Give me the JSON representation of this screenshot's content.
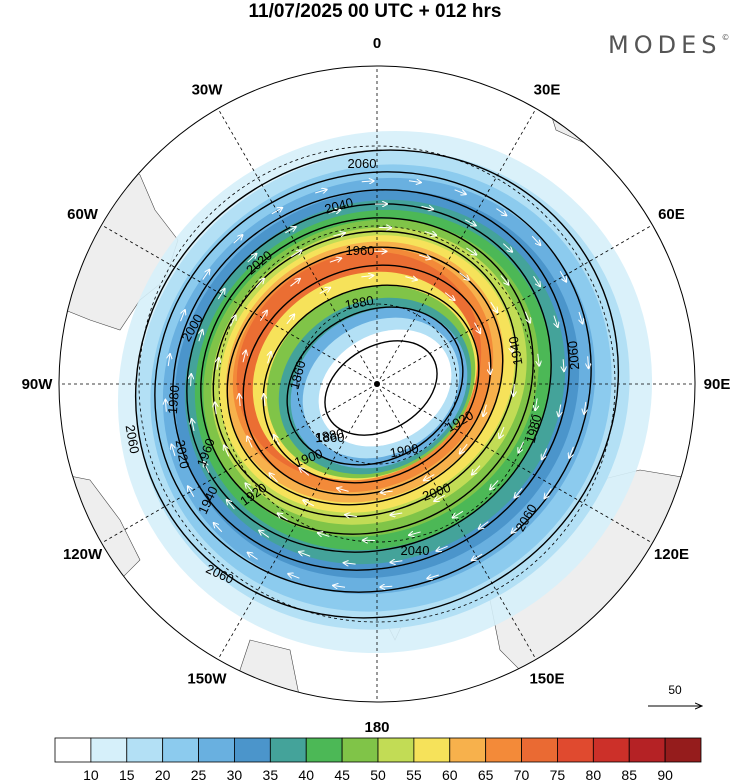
{
  "title": "11/07/2025  00 UTC  + 012 hrs",
  "brand": "MODES",
  "brand_mark": "©",
  "longitude_labels": [
    {
      "lon": 0,
      "text": "0"
    },
    {
      "lon": 30,
      "text": "30E"
    },
    {
      "lon": 60,
      "text": "60E"
    },
    {
      "lon": 90,
      "text": "90E"
    },
    {
      "lon": 120,
      "text": "120E"
    },
    {
      "lon": 150,
      "text": "150E"
    },
    {
      "lon": 180,
      "text": "180"
    },
    {
      "lon": -150,
      "text": "150W"
    },
    {
      "lon": -120,
      "text": "120W"
    },
    {
      "lon": -90,
      "text": "90W"
    },
    {
      "lon": -60,
      "text": "60W"
    },
    {
      "lon": -30,
      "text": "30W"
    }
  ],
  "contour_labels": [
    "2060",
    "2040",
    "2020",
    "2000",
    "1980",
    "1960",
    "1940",
    "1920",
    "1900",
    "1880",
    "1860"
  ],
  "reference_vector": {
    "label": "50"
  },
  "colorbar": {
    "ticks": [
      "10",
      "15",
      "20",
      "25",
      "30",
      "35",
      "40",
      "45",
      "50",
      "55",
      "60",
      "65",
      "70",
      "75",
      "80",
      "85",
      "90"
    ],
    "colors": [
      "#ffffff",
      "#d6f0fa",
      "#b3e0f5",
      "#8ccbee",
      "#69b0e0",
      "#4b95cb",
      "#44a39a",
      "#4cb856",
      "#80c448",
      "#c2dc55",
      "#f6e25a",
      "#f7b14c",
      "#f38a39",
      "#ea6a33",
      "#e04a2f",
      "#cc3029",
      "#b52225",
      "#951c1c"
    ]
  },
  "map_colors": {
    "land": "#eeeeee",
    "coast": "#444444",
    "grid": "#000000",
    "contour": "#000000",
    "wind_arrows": "#ffffff"
  }
}
